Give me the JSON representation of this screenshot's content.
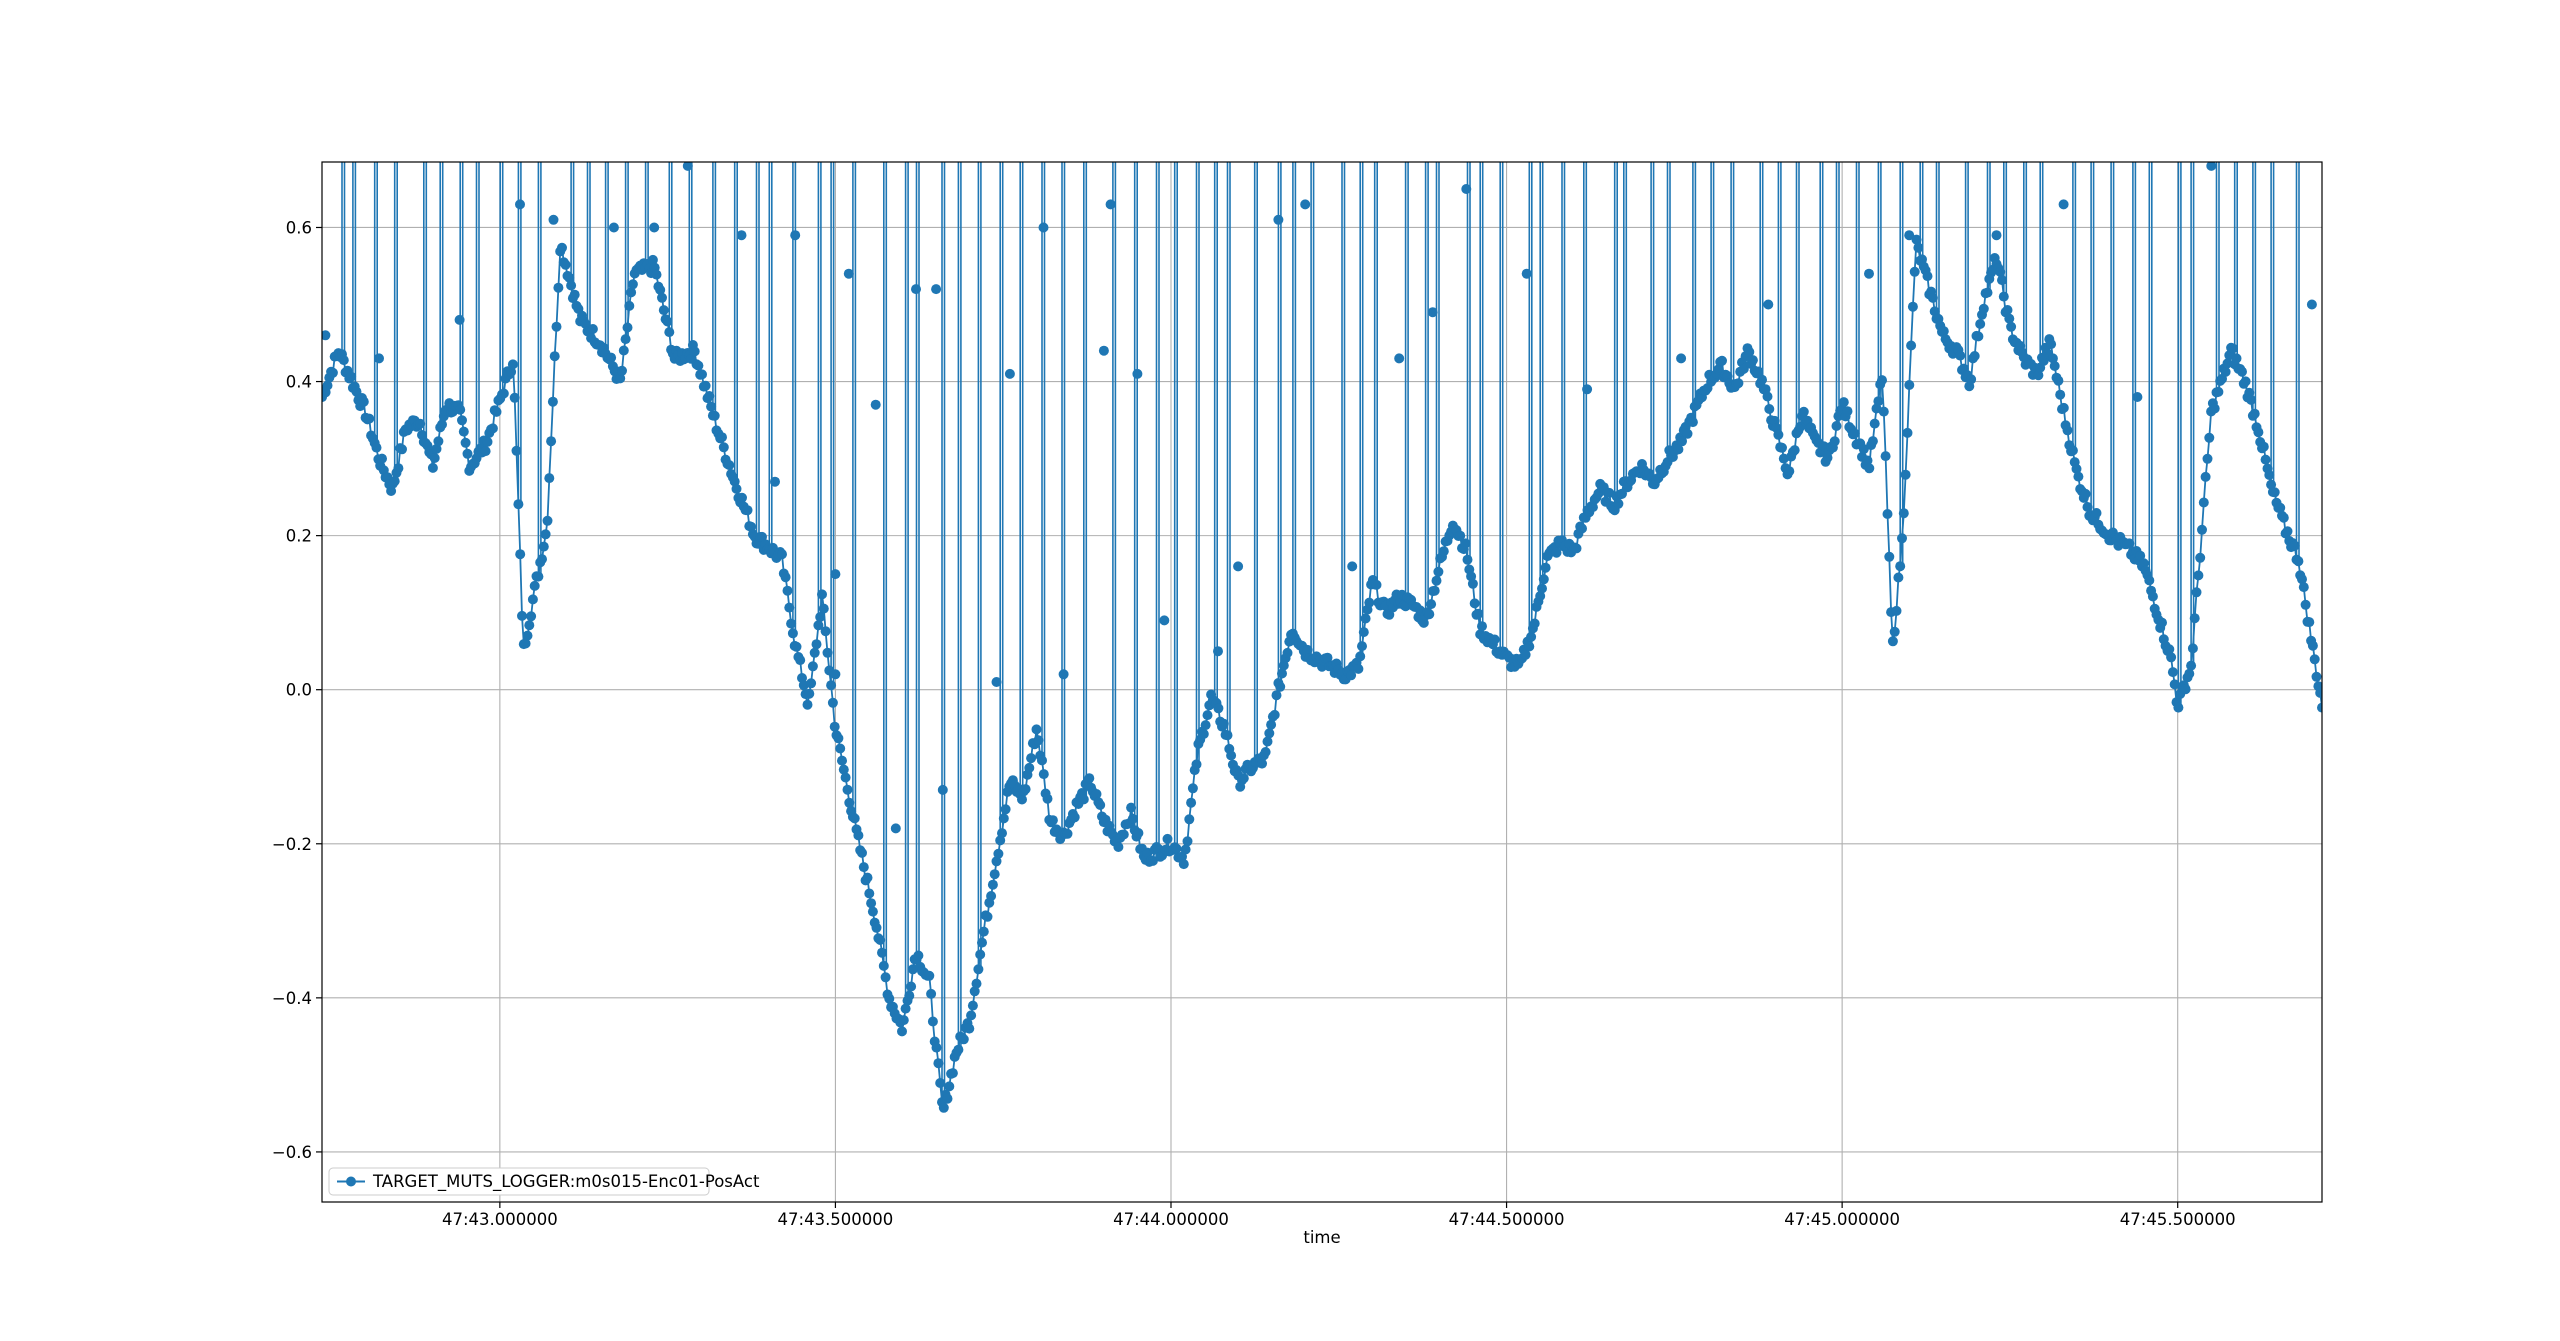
{
  "chart_data": {
    "type": "line",
    "title": "",
    "xlabel": "time",
    "ylabel": "",
    "x_axis_type": "time",
    "xlim": [
      42.735,
      45.715
    ],
    "ylim": [
      -0.665,
      0.685
    ],
    "grid": true,
    "legend_position": "lower-left",
    "xticks": [
      {
        "value": 43.0,
        "label": "47:43.000000"
      },
      {
        "value": 43.5,
        "label": "47:43.500000"
      },
      {
        "value": 44.0,
        "label": "47:44.000000"
      },
      {
        "value": 44.5,
        "label": "47:44.500000"
      },
      {
        "value": 45.0,
        "label": "47:45.000000"
      },
      {
        "value": 45.5,
        "label": "47:45.500000"
      }
    ],
    "yticks": [
      {
        "value": -0.6,
        "label": "−0.6"
      },
      {
        "value": -0.4,
        "label": "−0.4"
      },
      {
        "value": -0.2,
        "label": "−0.2"
      },
      {
        "value": 0.0,
        "label": "0.0"
      },
      {
        "value": 0.2,
        "label": "0.2"
      },
      {
        "value": 0.4,
        "label": "0.4"
      },
      {
        "value": 0.6,
        "label": "0.6"
      }
    ],
    "series": [
      {
        "name": "TARGET_MUTS_LOGGER:m0s015-Enc01-PosAct",
        "color": "#1f77b4",
        "marker": "circle",
        "trend": [
          [
            42.735,
            0.38
          ],
          [
            42.76,
            0.44
          ],
          [
            42.8,
            0.36
          ],
          [
            42.82,
            0.3
          ],
          [
            42.84,
            0.26
          ],
          [
            42.86,
            0.34
          ],
          [
            42.88,
            0.35
          ],
          [
            42.9,
            0.29
          ],
          [
            42.92,
            0.37
          ],
          [
            42.94,
            0.36
          ],
          [
            42.955,
            0.29
          ],
          [
            42.98,
            0.32
          ],
          [
            43.02,
            0.43
          ],
          [
            43.035,
            0.05
          ],
          [
            43.05,
            0.12
          ],
          [
            43.07,
            0.21
          ],
          [
            43.09,
            0.58
          ],
          [
            43.12,
            0.48
          ],
          [
            43.15,
            0.45
          ],
          [
            43.18,
            0.4
          ],
          [
            43.2,
            0.54
          ],
          [
            43.23,
            0.55
          ],
          [
            43.26,
            0.43
          ],
          [
            43.29,
            0.44
          ],
          [
            43.32,
            0.35
          ],
          [
            43.35,
            0.27
          ],
          [
            43.38,
            0.2
          ],
          [
            43.42,
            0.17
          ],
          [
            43.44,
            0.06
          ],
          [
            43.46,
            -0.02
          ],
          [
            43.48,
            0.12
          ],
          [
            43.5,
            -0.05
          ],
          [
            43.53,
            -0.18
          ],
          [
            43.56,
            -0.3
          ],
          [
            43.58,
            -0.4
          ],
          [
            43.6,
            -0.44
          ],
          [
            43.62,
            -0.34
          ],
          [
            43.64,
            -0.38
          ],
          [
            43.66,
            -0.55
          ],
          [
            43.68,
            -0.47
          ],
          [
            43.7,
            -0.43
          ],
          [
            43.72,
            -0.32
          ],
          [
            43.74,
            -0.22
          ],
          [
            43.76,
            -0.12
          ],
          [
            43.78,
            -0.14
          ],
          [
            43.8,
            -0.05
          ],
          [
            43.82,
            -0.17
          ],
          [
            43.84,
            -0.19
          ],
          [
            43.86,
            -0.15
          ],
          [
            43.88,
            -0.12
          ],
          [
            43.9,
            -0.17
          ],
          [
            43.92,
            -0.2
          ],
          [
            43.94,
            -0.16
          ],
          [
            43.96,
            -0.22
          ],
          [
            43.98,
            -0.21
          ],
          [
            44.0,
            -0.2
          ],
          [
            44.02,
            -0.22
          ],
          [
            44.04,
            -0.08
          ],
          [
            44.06,
            -0.01
          ],
          [
            44.08,
            -0.05
          ],
          [
            44.1,
            -0.12
          ],
          [
            44.12,
            -0.1
          ],
          [
            44.14,
            -0.09
          ],
          [
            44.16,
            0.0
          ],
          [
            44.18,
            0.08
          ],
          [
            44.2,
            0.05
          ],
          [
            44.22,
            0.04
          ],
          [
            44.24,
            0.03
          ],
          [
            44.26,
            0.02
          ],
          [
            44.28,
            0.03
          ],
          [
            44.3,
            0.14
          ],
          [
            44.32,
            0.1
          ],
          [
            44.34,
            0.12
          ],
          [
            44.36,
            0.11
          ],
          [
            44.38,
            0.09
          ],
          [
            44.4,
            0.16
          ],
          [
            44.42,
            0.22
          ],
          [
            44.44,
            0.18
          ],
          [
            44.46,
            0.08
          ],
          [
            44.48,
            0.06
          ],
          [
            44.5,
            0.04
          ],
          [
            44.52,
            0.03
          ],
          [
            44.54,
            0.08
          ],
          [
            44.56,
            0.17
          ],
          [
            44.58,
            0.19
          ],
          [
            44.6,
            0.18
          ],
          [
            44.62,
            0.23
          ],
          [
            44.64,
            0.26
          ],
          [
            44.66,
            0.24
          ],
          [
            44.68,
            0.27
          ],
          [
            44.7,
            0.29
          ],
          [
            44.72,
            0.27
          ],
          [
            44.74,
            0.3
          ],
          [
            44.76,
            0.32
          ],
          [
            44.78,
            0.36
          ],
          [
            44.8,
            0.4
          ],
          [
            44.82,
            0.42
          ],
          [
            44.84,
            0.39
          ],
          [
            44.86,
            0.44
          ],
          [
            44.88,
            0.4
          ],
          [
            44.9,
            0.34
          ],
          [
            44.92,
            0.28
          ],
          [
            44.94,
            0.36
          ],
          [
            44.96,
            0.32
          ],
          [
            44.98,
            0.3
          ],
          [
            45.0,
            0.37
          ],
          [
            45.02,
            0.33
          ],
          [
            45.04,
            0.29
          ],
          [
            45.06,
            0.41
          ],
          [
            45.075,
            0.05
          ],
          [
            45.09,
            0.2
          ],
          [
            45.11,
            0.58
          ],
          [
            45.13,
            0.52
          ],
          [
            45.15,
            0.46
          ],
          [
            45.17,
            0.44
          ],
          [
            45.19,
            0.4
          ],
          [
            45.21,
            0.5
          ],
          [
            45.23,
            0.56
          ],
          [
            45.25,
            0.47
          ],
          [
            45.27,
            0.43
          ],
          [
            45.29,
            0.41
          ],
          [
            45.31,
            0.45
          ],
          [
            45.33,
            0.36
          ],
          [
            45.35,
            0.28
          ],
          [
            45.37,
            0.23
          ],
          [
            45.4,
            0.2
          ],
          [
            45.43,
            0.18
          ],
          [
            45.45,
            0.16
          ],
          [
            45.47,
            0.1
          ],
          [
            45.49,
            0.04
          ],
          [
            45.5,
            -0.02
          ],
          [
            45.52,
            0.03
          ],
          [
            45.55,
            0.36
          ],
          [
            45.58,
            0.44
          ],
          [
            45.6,
            0.4
          ],
          [
            45.62,
            0.34
          ],
          [
            45.64,
            0.26
          ],
          [
            45.66,
            0.21
          ],
          [
            45.68,
            0.17
          ],
          [
            45.7,
            0.06
          ],
          [
            45.715,
            -0.02
          ]
        ],
        "outliers": [
          [
            42.74,
            0.46
          ],
          [
            42.82,
            0.43
          ],
          [
            42.94,
            0.48
          ],
          [
            43.03,
            0.63
          ],
          [
            43.08,
            0.61
          ],
          [
            43.17,
            0.6
          ],
          [
            43.23,
            0.6
          ],
          [
            43.28,
            0.68
          ],
          [
            43.36,
            0.59
          ],
          [
            43.41,
            0.27
          ],
          [
            43.44,
            0.59
          ],
          [
            43.5,
            0.02
          ],
          [
            43.5,
            0.15
          ],
          [
            43.52,
            0.54
          ],
          [
            43.56,
            0.37
          ],
          [
            43.59,
            -0.18
          ],
          [
            43.62,
            0.52
          ],
          [
            43.65,
            0.52
          ],
          [
            43.66,
            -0.13
          ],
          [
            43.74,
            0.01
          ],
          [
            43.76,
            0.41
          ],
          [
            43.81,
            0.6
          ],
          [
            43.84,
            0.02
          ],
          [
            43.9,
            0.44
          ],
          [
            43.91,
            0.63
          ],
          [
            43.95,
            0.41
          ],
          [
            43.99,
            0.09
          ],
          [
            44.07,
            0.05
          ],
          [
            44.1,
            0.16
          ],
          [
            44.16,
            0.61
          ],
          [
            44.2,
            0.63
          ],
          [
            44.27,
            0.16
          ],
          [
            44.34,
            0.43
          ],
          [
            44.39,
            0.49
          ],
          [
            44.44,
            0.65
          ],
          [
            44.53,
            0.54
          ],
          [
            44.62,
            0.39
          ],
          [
            44.76,
            0.43
          ],
          [
            44.89,
            0.5
          ],
          [
            45.04,
            0.54
          ],
          [
            45.1,
            0.59
          ],
          [
            45.23,
            0.59
          ],
          [
            45.33,
            0.63
          ],
          [
            45.44,
            0.38
          ],
          [
            45.55,
            0.68
          ],
          [
            45.7,
            0.5
          ]
        ],
        "drop_top": 0.685,
        "spike_count": 95
      }
    ]
  },
  "legend": {
    "entries": [
      "TARGET_MUTS_LOGGER:m0s015-Enc01-PosAct"
    ]
  }
}
